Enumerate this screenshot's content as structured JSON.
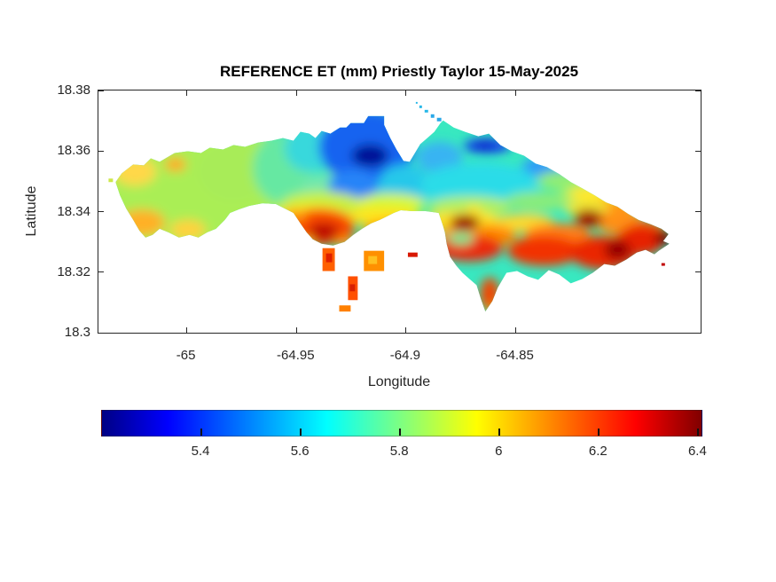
{
  "title": "REFERENCE ET (mm) Priestly Taylor 15-May-2025",
  "axes": {
    "xlabel": "Longitude",
    "ylabel": "Latitude"
  },
  "chart_data": {
    "type": "heatmap",
    "title": "REFERENCE ET (mm) Priestly Taylor 15-May-2025",
    "quantity": "REFERENCE ET (mm)",
    "method": "Priestly Taylor",
    "date": "15-May-2025",
    "xlabel": "Longitude",
    "ylabel": "Latitude",
    "xlim": [
      -65.0403,
      -64.7657
    ],
    "ylim": [
      18.3,
      18.38
    ],
    "x_ticks": [
      -65,
      -64.95,
      -64.9,
      -64.85
    ],
    "x_tick_labels": [
      "-65",
      "-64.95",
      "-64.9",
      "-64.85"
    ],
    "y_ticks": [
      18.38,
      18.36,
      18.34,
      18.32,
      18.3
    ],
    "y_tick_labels": [
      "18.38",
      "18.36",
      "18.34",
      "18.32",
      "18.3"
    ],
    "grid": false,
    "box": true,
    "tick_dir": "in",
    "colorbar": {
      "orientation": "horizontal",
      "position": "bottom",
      "colormap": "jet",
      "vmin": 5.2,
      "vmax": 6.41,
      "ticks": [
        5.4,
        5.6,
        5.8,
        6,
        6.2,
        6.4
      ],
      "tick_labels": [
        "5.4",
        "5.6",
        "5.8",
        "6",
        "6.2",
        "6.4"
      ],
      "gradient_stops": [
        [
          0,
          "#000084"
        ],
        [
          0.11,
          "#0000ff"
        ],
        [
          0.375,
          "#00ffff"
        ],
        [
          0.625,
          "#ffff00"
        ],
        [
          0.89,
          "#ff0000"
        ],
        [
          1,
          "#800000"
        ]
      ]
    },
    "regions_et_mm": {
      "north_central_blue_minimum": 5.25,
      "north_coast_blue_band": 5.4,
      "central_cyan_band": 5.6,
      "west_peninsula_green_yellow": 5.85,
      "west_peninsula_orange_patches": 6.1,
      "yellow_transition_band": 6.0,
      "south_coast_orange_red_band": 6.25,
      "southeast_red_maximum": 6.4,
      "east_tip_dark_red": 6.42,
      "offshore_cays_south": 6.2,
      "offshore_cays_northwest": 5.55
    }
  }
}
